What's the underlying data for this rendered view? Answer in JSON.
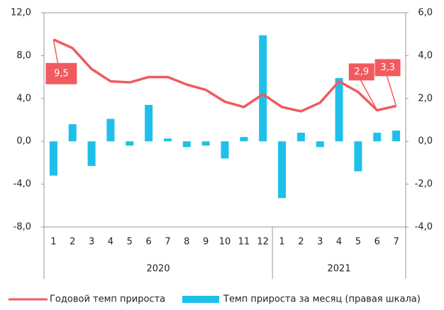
{
  "chart_data": {
    "type": "bar-line",
    "groups": [
      {
        "name": "2020",
        "categories": [
          "1",
          "2",
          "3",
          "4",
          "5",
          "6",
          "7",
          "8",
          "9",
          "10",
          "11",
          "12"
        ]
      },
      {
        "name": "2021",
        "categories": [
          "1",
          "2",
          "3",
          "4",
          "5",
          "6",
          "7"
        ]
      }
    ],
    "series": [
      {
        "name": "Годовой темп прироста",
        "type": "line",
        "axis": "y",
        "color": "#f15a5f",
        "values": [
          9.5,
          8.7,
          6.75,
          5.6,
          5.5,
          6.0,
          6.0,
          5.3,
          4.8,
          3.7,
          3.2,
          4.4,
          3.2,
          2.8,
          3.6,
          5.6,
          4.6,
          2.9,
          3.3
        ],
        "value_labels": [
          "9,5",
          null,
          null,
          null,
          null,
          null,
          null,
          null,
          null,
          null,
          null,
          null,
          null,
          null,
          null,
          null,
          null,
          "2,9",
          "3,3"
        ]
      },
      {
        "name": "Темп прироста за месяц (правая шкала)",
        "type": "bar",
        "axis": "y2",
        "color": "#1ec0ea",
        "values": [
          -1.6,
          0.8,
          -1.15,
          1.05,
          -0.2,
          1.7,
          0.13,
          -0.27,
          -0.2,
          -0.8,
          0.2,
          4.95,
          -2.65,
          0.4,
          -0.27,
          2.95,
          -1.4,
          0.4,
          0.5
        ]
      }
    ],
    "ylim": [
      -8,
      12
    ],
    "yticks": [
      {
        "value": -8,
        "label": "-8,0"
      },
      {
        "value": -4,
        "label": "-4,0"
      },
      {
        "value": 0,
        "label": "0,0"
      },
      {
        "value": 4,
        "label": "4,0"
      },
      {
        "value": 8,
        "label": "8,0"
      },
      {
        "value": 12,
        "label": "12,0"
      }
    ],
    "y2lim": [
      -4,
      6
    ],
    "y2ticks": [
      {
        "value": -4,
        "label": "-4,0"
      },
      {
        "value": -2,
        "label": "-2,0"
      },
      {
        "value": 0,
        "label": "0,0"
      },
      {
        "value": 2,
        "label": "2,0"
      },
      {
        "value": 4,
        "label": "4,0"
      },
      {
        "value": 6,
        "label": "6,0"
      }
    ],
    "legend": "bottom"
  }
}
